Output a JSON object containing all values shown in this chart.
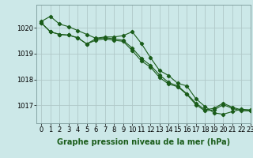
{
  "title": "Graphe pression niveau de la mer (hPa)",
  "bg_color": "#cce8e8",
  "grid_color": "#b0c8c8",
  "line_color": "#1a5c1a",
  "xlim": [
    -0.5,
    23
  ],
  "ylim": [
    1016.3,
    1020.9
  ],
  "yticks": [
    1017,
    1018,
    1019,
    1020
  ],
  "xticks": [
    0,
    1,
    2,
    3,
    4,
    5,
    6,
    7,
    8,
    9,
    10,
    11,
    12,
    13,
    14,
    15,
    16,
    17,
    18,
    19,
    20,
    21,
    22,
    23
  ],
  "series": [
    [
      1020.25,
      1020.45,
      1020.15,
      1020.05,
      1019.9,
      1019.75,
      1019.6,
      1019.65,
      1019.65,
      1019.7,
      1019.85,
      1019.4,
      1018.85,
      1018.35,
      1018.15,
      1017.85,
      1017.75,
      1017.25,
      1016.95,
      1016.7,
      1016.65,
      1016.75,
      1016.85,
      1016.8
    ],
    [
      1020.2,
      1019.85,
      1019.75,
      1019.72,
      1019.62,
      1019.38,
      1019.58,
      1019.62,
      1019.58,
      1019.52,
      1019.22,
      1018.82,
      1018.55,
      1018.18,
      1017.88,
      1017.75,
      1017.45,
      1017.08,
      1016.82,
      1016.88,
      1017.08,
      1016.92,
      1016.82,
      1016.82
    ],
    [
      1020.2,
      1019.85,
      1019.75,
      1019.72,
      1019.62,
      1019.38,
      1019.52,
      1019.58,
      1019.52,
      1019.48,
      1019.12,
      1018.72,
      1018.48,
      1018.08,
      1017.82,
      1017.72,
      1017.42,
      1017.02,
      1016.78,
      1016.82,
      1017.02,
      1016.88,
      1016.78,
      1016.78
    ]
  ],
  "xlabel_fontsize": 7,
  "tick_fontsize": 6
}
